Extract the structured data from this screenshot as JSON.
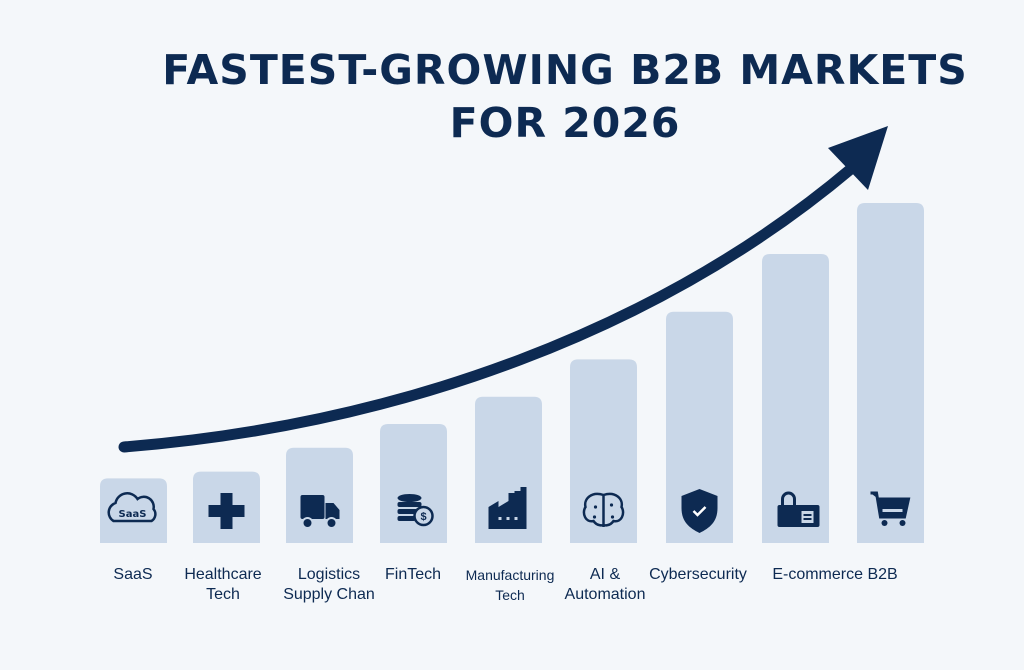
{
  "chart_data": {
    "type": "bar",
    "title": "FASTEST-GROWING B2B MARKETS FOR 2026",
    "categories": [
      "SaaS",
      "Healthcare\nTech",
      "Logistics\nSupply Chan",
      "FinTech",
      "Manufacturing\nTech",
      "AI &\nAutomation",
      "Cybersecurity",
      "E-commerce B2B",
      ""
    ],
    "values_relative": [
      19,
      21,
      28,
      35,
      43,
      54,
      68,
      85,
      100
    ],
    "icons": [
      "cloud-saas-icon",
      "medical-cross-icon",
      "truck-icon",
      "coins-dollar-icon",
      "factory-icon",
      "brain-icon",
      "shield-check-icon",
      "lock-card-icon",
      "shopping-cart-icon"
    ],
    "trend_arrow": "upward-curved",
    "axes": "none",
    "grid": false,
    "colors": {
      "bar": "#c9d7e8",
      "accent": "#0d2a52",
      "background": "#f4f7fa"
    }
  }
}
